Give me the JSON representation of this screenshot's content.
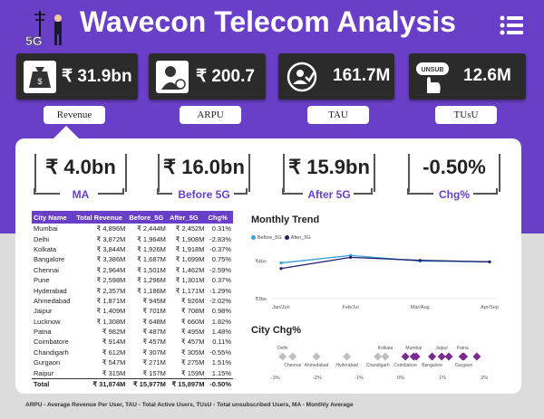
{
  "header": {
    "title": "Wavecon Telecom Analysis",
    "logo_text": "5G",
    "logo_icon": "businessman-with-tower-icon",
    "menu_icon": "list-menu-icon"
  },
  "kpi_cards": [
    {
      "value": "₹ 31.9bn",
      "label": "Revenue",
      "icon": "money-bag-icon"
    },
    {
      "value": "₹ 200.7",
      "label": "ARPU",
      "icon": "user-rupee-icon"
    },
    {
      "value": "161.7M",
      "label": "TAU",
      "icon": "user-check-icon"
    },
    {
      "value": "12.6M",
      "label": "TUsU",
      "icon": "unsub-hand-icon"
    }
  ],
  "metrics": [
    {
      "value": "₹ 4.0bn",
      "caption": "MA"
    },
    {
      "value": "₹ 16.0bn",
      "caption": "Before 5G"
    },
    {
      "value": "₹ 15.9bn",
      "caption": "After 5G"
    },
    {
      "value": "-0.50%",
      "caption": "Chg%"
    }
  ],
  "table": {
    "headers": [
      "City Name",
      "Total Revenue",
      "Before_5G",
      "After_5G",
      "Chg%"
    ],
    "rows": [
      [
        "Mumbai",
        "₹ 4,896M",
        "₹ 2,444M",
        "₹ 2,452M",
        "0.31%"
      ],
      [
        "Delhi",
        "₹ 3,872M",
        "₹ 1,964M",
        "₹ 1,908M",
        "-2.83%"
      ],
      [
        "Kolkata",
        "₹ 3,844M",
        "₹ 1,926M",
        "₹ 1,918M",
        "-0.37%"
      ],
      [
        "Bangalore",
        "₹ 3,386M",
        "₹ 1,687M",
        "₹ 1,699M",
        "0.75%"
      ],
      [
        "Chennai",
        "₹ 2,964M",
        "₹ 1,501M",
        "₹ 1,462M",
        "-2.59%"
      ],
      [
        "Pune",
        "₹ 2,598M",
        "₹ 1,296M",
        "₹ 1,301M",
        "0.37%"
      ],
      [
        "Hyderabad",
        "₹ 2,357M",
        "₹ 1,186M",
        "₹ 1,171M",
        "-1.29%"
      ],
      [
        "Ahmedabad",
        "₹ 1,871M",
        "₹ 945M",
        "₹ 926M",
        "-2.02%"
      ],
      [
        "Jaipur",
        "₹ 1,409M",
        "₹ 701M",
        "₹ 708M",
        "0.98%"
      ],
      [
        "Lucknow",
        "₹ 1,308M",
        "₹ 648M",
        "₹ 660M",
        "1.82%"
      ],
      [
        "Patna",
        "₹ 982M",
        "₹ 487M",
        "₹ 495M",
        "1.48%"
      ],
      [
        "Coimbatore",
        "₹ 914M",
        "₹ 457M",
        "₹ 457M",
        "0.11%"
      ],
      [
        "Chandigarh",
        "₹ 612M",
        "₹ 307M",
        "₹ 305M",
        "-0.55%"
      ],
      [
        "Gurgaon",
        "₹ 547M",
        "₹ 271M",
        "₹ 275M",
        "1.51%"
      ],
      [
        "Raipur",
        "₹ 315M",
        "₹ 157M",
        "₹ 159M",
        "1.15%"
      ]
    ],
    "total": [
      "Total",
      "₹ 31,874M",
      "₹ 15,977M",
      "₹ 15,897M",
      "-0.50%"
    ]
  },
  "chart_data": [
    {
      "type": "line",
      "title": "Monthly Trend",
      "categories": [
        "Jan/Jun",
        "Feb/Jul",
        "Mar/Aug",
        "Apr/Sep"
      ],
      "series": [
        {
          "name": "Before_5G",
          "values": [
            3.95,
            4.15,
            4.0,
            3.98
          ]
        },
        {
          "name": "After_5G",
          "values": [
            3.8,
            4.1,
            4.02,
            3.98
          ]
        }
      ],
      "ytick_labels": [
        "₹4bn",
        "₹3bn"
      ],
      "yticks": [
        4,
        3
      ],
      "ylim": [
        2.95,
        4.35
      ],
      "colors": {
        "Before_5G": "#3aa0e0",
        "After_5G": "#1f1f6e"
      }
    },
    {
      "type": "scatter",
      "title": "City Chg%",
      "xlim": [
        -3.3,
        2.3
      ],
      "xticks": [
        -3,
        -2,
        -1,
        0,
        1,
        2
      ],
      "xtick_labels": [
        "-3%",
        "-2%",
        "-1%",
        "0%",
        "1%",
        "2%"
      ],
      "points": [
        {
          "label": "Delhi",
          "x": -2.83
        },
        {
          "label": "Chennai",
          "x": -2.59
        },
        {
          "label": "Ahmedabad",
          "x": -2.02
        },
        {
          "label": "Hyderabad",
          "x": -1.29
        },
        {
          "label": "Chandigarh",
          "x": -0.55
        },
        {
          "label": "Kolkata",
          "x": -0.37
        },
        {
          "label": "Coimbatore",
          "x": 0.11
        },
        {
          "label": "Mumbai",
          "x": 0.31
        },
        {
          "label": "Pune",
          "x": 0.37
        },
        {
          "label": "Bangalore",
          "x": 0.75
        },
        {
          "label": "Jaipur",
          "x": 0.98
        },
        {
          "label": "Raipur",
          "x": 1.15
        },
        {
          "label": "Patna",
          "x": 1.48
        },
        {
          "label": "Gurgaon",
          "x": 1.51
        },
        {
          "label": "Lucknow",
          "x": 1.82
        }
      ],
      "visible_labels": {
        "top": [
          "Delhi",
          "Kolkata",
          "Mumbai",
          "Jaipur",
          "Patna"
        ],
        "bottom": [
          "Chennai",
          "Ahmedabad",
          "Hyderabad",
          "Chandigarh",
          "Coimbatore",
          "Bangalore",
          "Gurgaon"
        ]
      },
      "colors": {
        "negative": "#bfbfbf",
        "positive": "#7b2a8f"
      }
    }
  ],
  "footer": "ARPU - Average Revenue Per User, TAU - Total Active Users, TUsU - Total unsubscribed Users, MA - Monthly Average"
}
